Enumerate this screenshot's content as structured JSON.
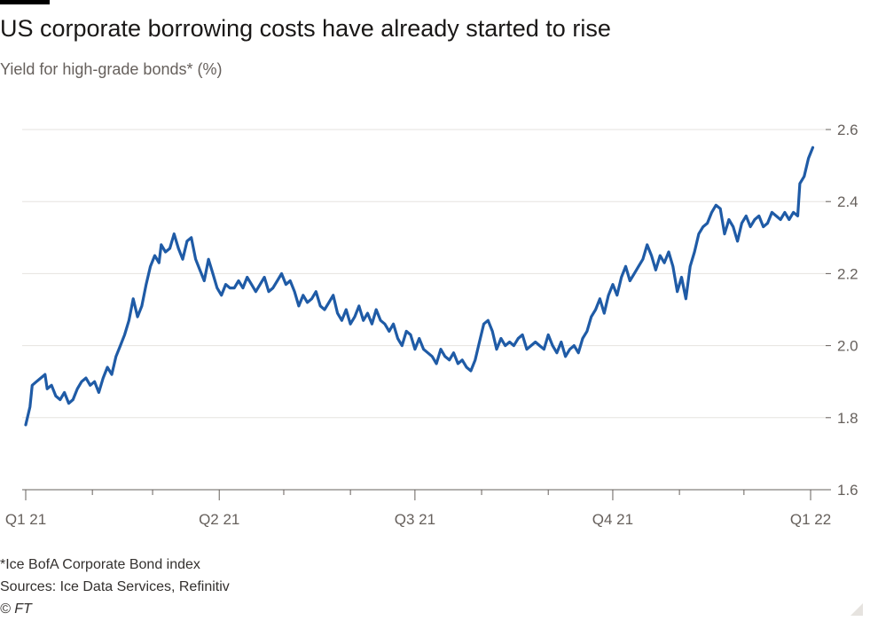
{
  "title": "US corporate borrowing costs have already started to rise",
  "subtitle": "Yield for high-grade bonds* (%)",
  "footnote": "*Ice BofA Corporate Bond index",
  "sources": "Sources: Ice Data Services, Refinitiv",
  "copyright": "© FT",
  "colors": {
    "line": "#1f5ba6",
    "grid": "#e6e3df",
    "axis": "#66605c"
  },
  "chart_data": {
    "type": "line",
    "title": "US corporate borrowing costs have already started to rise",
    "ylabel": "Yield for high-grade bonds* (%)",
    "xlabel": "",
    "ylim": [
      1.6,
      2.6
    ],
    "y_ticks": [
      1.6,
      1.8,
      2.0,
      2.2,
      2.4,
      2.6
    ],
    "y_tick_labels": [
      "1.6",
      "1.8",
      "2.0",
      "2.2",
      "2.4",
      "2.6"
    ],
    "x_range_days": [
      0,
      372
    ],
    "x_ticks": [
      {
        "label": "Q1 21",
        "day": 0
      },
      {
        "label": "Q2 21",
        "day": 90
      },
      {
        "label": "Q3 21",
        "day": 181
      },
      {
        "label": "Q4 21",
        "day": 273
      },
      {
        "label": "Q1 22",
        "day": 365
      }
    ],
    "grid": true,
    "series": [
      {
        "name": "Ice BofA Corporate Bond index yield (%)",
        "x_unit": "days since 1 Jan 2021",
        "points": [
          [
            0,
            1.78
          ],
          [
            2,
            1.83
          ],
          [
            3,
            1.89
          ],
          [
            5,
            1.9
          ],
          [
            7,
            1.91
          ],
          [
            9,
            1.92
          ],
          [
            10,
            1.88
          ],
          [
            12,
            1.89
          ],
          [
            14,
            1.86
          ],
          [
            16,
            1.85
          ],
          [
            18,
            1.87
          ],
          [
            20,
            1.84
          ],
          [
            22,
            1.85
          ],
          [
            24,
            1.88
          ],
          [
            26,
            1.9
          ],
          [
            28,
            1.91
          ],
          [
            30,
            1.89
          ],
          [
            32,
            1.9
          ],
          [
            34,
            1.87
          ],
          [
            36,
            1.91
          ],
          [
            38,
            1.94
          ],
          [
            40,
            1.92
          ],
          [
            42,
            1.97
          ],
          [
            44,
            2.0
          ],
          [
            46,
            2.03
          ],
          [
            48,
            2.07
          ],
          [
            50,
            2.13
          ],
          [
            52,
            2.08
          ],
          [
            54,
            2.11
          ],
          [
            56,
            2.17
          ],
          [
            58,
            2.22
          ],
          [
            60,
            2.25
          ],
          [
            62,
            2.23
          ],
          [
            63,
            2.28
          ],
          [
            65,
            2.26
          ],
          [
            67,
            2.27
          ],
          [
            69,
            2.31
          ],
          [
            71,
            2.27
          ],
          [
            73,
            2.24
          ],
          [
            75,
            2.29
          ],
          [
            77,
            2.3
          ],
          [
            79,
            2.24
          ],
          [
            81,
            2.21
          ],
          [
            83,
            2.18
          ],
          [
            85,
            2.24
          ],
          [
            87,
            2.2
          ],
          [
            89,
            2.16
          ],
          [
            91,
            2.14
          ],
          [
            93,
            2.17
          ],
          [
            95,
            2.16
          ],
          [
            97,
            2.16
          ],
          [
            99,
            2.18
          ],
          [
            101,
            2.16
          ],
          [
            103,
            2.19
          ],
          [
            105,
            2.17
          ],
          [
            107,
            2.15
          ],
          [
            109,
            2.17
          ],
          [
            111,
            2.19
          ],
          [
            113,
            2.15
          ],
          [
            115,
            2.16
          ],
          [
            117,
            2.18
          ],
          [
            119,
            2.2
          ],
          [
            121,
            2.17
          ],
          [
            123,
            2.18
          ],
          [
            125,
            2.15
          ],
          [
            127,
            2.11
          ],
          [
            129,
            2.14
          ],
          [
            131,
            2.12
          ],
          [
            133,
            2.13
          ],
          [
            135,
            2.15
          ],
          [
            137,
            2.11
          ],
          [
            139,
            2.1
          ],
          [
            141,
            2.12
          ],
          [
            143,
            2.14
          ],
          [
            145,
            2.09
          ],
          [
            147,
            2.07
          ],
          [
            149,
            2.1
          ],
          [
            151,
            2.06
          ],
          [
            153,
            2.08
          ],
          [
            155,
            2.11
          ],
          [
            157,
            2.07
          ],
          [
            159,
            2.09
          ],
          [
            161,
            2.06
          ],
          [
            163,
            2.1
          ],
          [
            165,
            2.07
          ],
          [
            167,
            2.06
          ],
          [
            169,
            2.04
          ],
          [
            171,
            2.06
          ],
          [
            173,
            2.02
          ],
          [
            175,
            2.0
          ],
          [
            177,
            2.04
          ],
          [
            179,
            2.03
          ],
          [
            181,
            1.99
          ],
          [
            183,
            2.02
          ],
          [
            185,
            1.99
          ],
          [
            187,
            1.98
          ],
          [
            189,
            1.97
          ],
          [
            191,
            1.95
          ],
          [
            193,
            1.99
          ],
          [
            195,
            1.97
          ],
          [
            197,
            1.96
          ],
          [
            199,
            1.98
          ],
          [
            201,
            1.95
          ],
          [
            203,
            1.96
          ],
          [
            205,
            1.94
          ],
          [
            207,
            1.93
          ],
          [
            209,
            1.96
          ],
          [
            211,
            2.01
          ],
          [
            213,
            2.06
          ],
          [
            215,
            2.07
          ],
          [
            217,
            2.04
          ],
          [
            219,
            1.99
          ],
          [
            221,
            2.02
          ],
          [
            223,
            2.0
          ],
          [
            225,
            2.01
          ],
          [
            227,
            2.0
          ],
          [
            229,
            2.02
          ],
          [
            231,
            2.03
          ],
          [
            233,
            1.99
          ],
          [
            235,
            2.0
          ],
          [
            237,
            2.01
          ],
          [
            239,
            2.0
          ],
          [
            241,
            1.99
          ],
          [
            243,
            2.03
          ],
          [
            245,
            2.0
          ],
          [
            247,
            1.98
          ],
          [
            249,
            2.01
          ],
          [
            251,
            1.97
          ],
          [
            253,
            1.99
          ],
          [
            255,
            2.0
          ],
          [
            257,
            1.98
          ],
          [
            259,
            2.02
          ],
          [
            261,
            2.04
          ],
          [
            263,
            2.08
          ],
          [
            265,
            2.1
          ],
          [
            267,
            2.13
          ],
          [
            269,
            2.09
          ],
          [
            271,
            2.14
          ],
          [
            273,
            2.17
          ],
          [
            275,
            2.14
          ],
          [
            277,
            2.19
          ],
          [
            279,
            2.22
          ],
          [
            281,
            2.18
          ],
          [
            283,
            2.2
          ],
          [
            285,
            2.22
          ],
          [
            287,
            2.24
          ],
          [
            289,
            2.28
          ],
          [
            291,
            2.25
          ],
          [
            293,
            2.21
          ],
          [
            295,
            2.25
          ],
          [
            297,
            2.23
          ],
          [
            299,
            2.26
          ],
          [
            301,
            2.22
          ],
          [
            303,
            2.15
          ],
          [
            305,
            2.19
          ],
          [
            307,
            2.13
          ],
          [
            309,
            2.22
          ],
          [
            311,
            2.26
          ],
          [
            313,
            2.31
          ],
          [
            315,
            2.33
          ],
          [
            317,
            2.34
          ],
          [
            319,
            2.37
          ],
          [
            321,
            2.39
          ],
          [
            323,
            2.38
          ],
          [
            325,
            2.31
          ],
          [
            327,
            2.35
          ],
          [
            329,
            2.33
          ],
          [
            331,
            2.29
          ],
          [
            333,
            2.34
          ],
          [
            335,
            2.36
          ],
          [
            337,
            2.33
          ],
          [
            339,
            2.35
          ],
          [
            341,
            2.36
          ],
          [
            343,
            2.33
          ],
          [
            345,
            2.34
          ],
          [
            347,
            2.37
          ],
          [
            349,
            2.36
          ],
          [
            351,
            2.35
          ],
          [
            353,
            2.37
          ],
          [
            355,
            2.35
          ],
          [
            357,
            2.37
          ],
          [
            359,
            2.36
          ],
          [
            360,
            2.45
          ],
          [
            362,
            2.47
          ],
          [
            364,
            2.52
          ],
          [
            366,
            2.55
          ]
        ]
      }
    ]
  }
}
